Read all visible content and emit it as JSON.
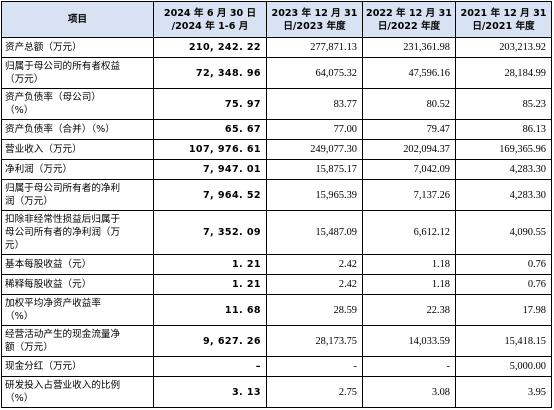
{
  "table": {
    "headers": [
      [
        "项目"
      ],
      [
        "2024 年 6 月 30 日",
        "/2024 年 1-6 月"
      ],
      [
        "2023 年 12 月 31",
        "日/2023 年度"
      ],
      [
        "2022 年 12 月 31",
        "日/2022 年度"
      ],
      [
        "2021 年 12 月 31",
        "日/2021 年度"
      ]
    ],
    "rows": [
      {
        "label": [
          "资产总额（万元）"
        ],
        "values": [
          "210, 242. 22",
          "277,871.13",
          "231,361.98",
          "203,213.92"
        ]
      },
      {
        "label": [
          "归属于母公司的所有者权益",
          "（万元）"
        ],
        "values": [
          "72, 348. 96",
          "64,075.32",
          "47,596.16",
          "28,184.99"
        ]
      },
      {
        "label": [
          "资产负债率（母公司）",
          "（%）"
        ],
        "values": [
          "75. 97",
          "83.77",
          "80.52",
          "85.23"
        ]
      },
      {
        "label": [
          "资产负债率（合并）（%）"
        ],
        "values": [
          "65. 67",
          "77.00",
          "79.47",
          "86.13"
        ]
      },
      {
        "label": [
          "营业收入（万元）"
        ],
        "values": [
          "107, 976. 61",
          "249,077.30",
          "202,094.37",
          "169,365.96"
        ]
      },
      {
        "label": [
          "净利润（万元）"
        ],
        "values": [
          "7, 947. 01",
          "15,875.17",
          "7,042.09",
          "4,283.30"
        ]
      },
      {
        "label": [
          "归属于母公司所有者的净利",
          "润（万元）"
        ],
        "values": [
          "7, 964. 52",
          "15,965.39",
          "7,137.26",
          "4,283.30"
        ]
      },
      {
        "label": [
          "扣除非经常性损益后归属于",
          "母公司所有者的净利润（万",
          "元）"
        ],
        "values": [
          "7, 352. 09",
          "15,487.09",
          "6,612.12",
          "4,090.55"
        ]
      },
      {
        "label": [
          "基本每股收益（元）"
        ],
        "values": [
          "1. 21",
          "2.42",
          "1.18",
          "0.76"
        ]
      },
      {
        "label": [
          "稀释每股收益（元）"
        ],
        "values": [
          "1. 21",
          "2.42",
          "1.18",
          "0.76"
        ]
      },
      {
        "label": [
          "加权平均净资产收益率",
          "（%）"
        ],
        "values": [
          "11. 68",
          "28.59",
          "22.38",
          "17.98"
        ]
      },
      {
        "label": [
          "经营活动产生的现金流量净",
          "额（万元）"
        ],
        "values": [
          "9, 627. 26",
          "28,173.75",
          "14,033.59",
          "15,418.15"
        ]
      },
      {
        "label": [
          "现金分红（万元）"
        ],
        "values": [
          "–",
          "-",
          "-",
          "5,000.00"
        ]
      },
      {
        "label": [
          "研发投入占营业收入的比例",
          "（%）"
        ],
        "values": [
          "3. 13",
          "2.75",
          "3.08",
          "3.95"
        ]
      }
    ]
  }
}
